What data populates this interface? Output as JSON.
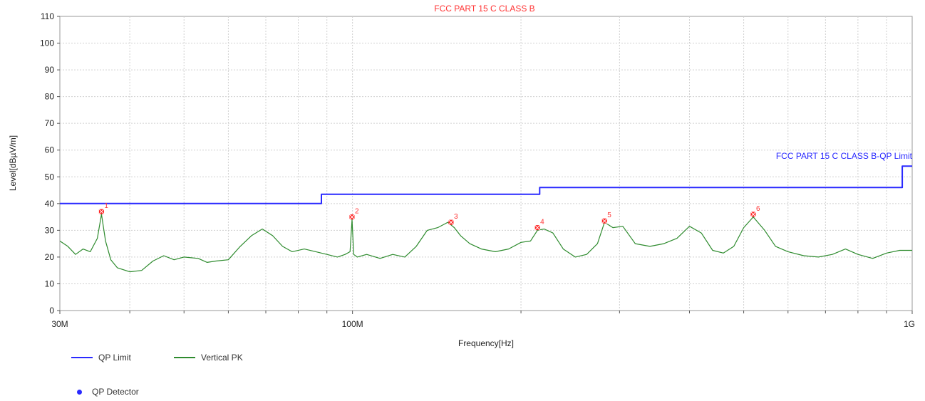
{
  "chart_data": {
    "type": "line",
    "title": "FCC PART 15 C CLASS B",
    "xlabel": "Frequency[Hz]",
    "ylabel": "Level[dBµV/m]",
    "x_scale": "log",
    "xlim": [
      30000000,
      1000000000
    ],
    "ylim": [
      0,
      110
    ],
    "yticks": [
      0,
      10,
      20,
      30,
      40,
      50,
      60,
      70,
      80,
      90,
      100,
      110
    ],
    "xtick_labels": [
      {
        "x": 30000000,
        "label": "30M"
      },
      {
        "x": 100000000,
        "label": "100M"
      },
      {
        "x": 1000000000,
        "label": "1G"
      }
    ],
    "x_minor_ticks": [
      40000000,
      50000000,
      60000000,
      70000000,
      80000000,
      90000000,
      200000000,
      300000000,
      400000000,
      500000000,
      600000000,
      700000000,
      800000000,
      900000000
    ],
    "grid": true,
    "limit_label": "FCC PART 15 C CLASS B-QP Limit",
    "series": [
      {
        "name": "QP Limit",
        "color": "#2a2aff",
        "step": true,
        "x": [
          30000000,
          88000000,
          88000000,
          216000000,
          216000000,
          960000000,
          960000000,
          1000000000
        ],
        "values": [
          40,
          40,
          43.5,
          43.5,
          46,
          46,
          54,
          54
        ]
      },
      {
        "name": "Vertical PK",
        "color": "#2e8b2e",
        "x": [
          30000000,
          31000000,
          32000000,
          33000000,
          34000000,
          35000000,
          35600000,
          36200000,
          37000000,
          38000000,
          40000000,
          42000000,
          44000000,
          46000000,
          48000000,
          50000000,
          53000000,
          55000000,
          57000000,
          60000000,
          63000000,
          66000000,
          69000000,
          72000000,
          75000000,
          78000000,
          82000000,
          86000000,
          90000000,
          94000000,
          97000000,
          99000000,
          99800000,
          100500000,
          102000000,
          106000000,
          112000000,
          118000000,
          124000000,
          130000000,
          136000000,
          142000000,
          148000000,
          152000000,
          156000000,
          162000000,
          170000000,
          180000000,
          190000000,
          200000000,
          208000000,
          214000000,
          220000000,
          228000000,
          238000000,
          250000000,
          262000000,
          274000000,
          282000000,
          292000000,
          304000000,
          320000000,
          340000000,
          360000000,
          380000000,
          400000000,
          420000000,
          440000000,
          460000000,
          480000000,
          500000000,
          520000000,
          545000000,
          570000000,
          600000000,
          640000000,
          680000000,
          720000000,
          760000000,
          800000000,
          850000000,
          900000000,
          950000000,
          1000000000
        ],
        "values": [
          26,
          24,
          21,
          23,
          22,
          27,
          36,
          26,
          19,
          16,
          14.5,
          15,
          18.5,
          20.5,
          19,
          20,
          19.5,
          18,
          18.5,
          19,
          24,
          28,
          30.5,
          28,
          24,
          22,
          23,
          22,
          21,
          20,
          21,
          22,
          34,
          21,
          20,
          21,
          19.5,
          21,
          20,
          24,
          30,
          31,
          33,
          31,
          28,
          25,
          23,
          22,
          23,
          25.5,
          26,
          30,
          30.5,
          29,
          23,
          20,
          21,
          25,
          33,
          31,
          31.5,
          25,
          24,
          25,
          27,
          31.5,
          29,
          22.5,
          21.5,
          24,
          31,
          35,
          30,
          24,
          22,
          20.5,
          20,
          21,
          23,
          21,
          19.5,
          21.5,
          22.5,
          22.5
        ]
      },
      {
        "name": "QP Detector",
        "color": "#2a2aff",
        "marker": "dot",
        "x": [],
        "values": []
      }
    ],
    "markers": [
      {
        "label": "1",
        "x": 35600000,
        "value": 37
      },
      {
        "label": "2",
        "x": 99800000,
        "value": 35
      },
      {
        "label": "3",
        "x": 150000000,
        "value": 33
      },
      {
        "label": "4",
        "x": 214000000,
        "value": 31
      },
      {
        "label": "5",
        "x": 282000000,
        "value": 33.5
      },
      {
        "label": "6",
        "x": 520000000,
        "value": 36
      }
    ],
    "marker_color": "#ff2222"
  }
}
